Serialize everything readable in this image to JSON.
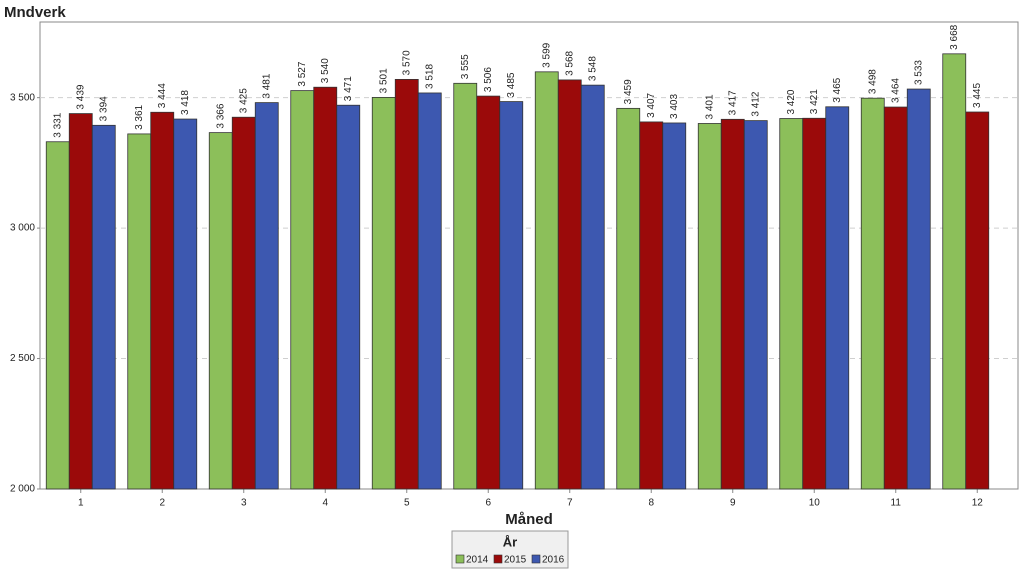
{
  "chart_data": {
    "type": "bar",
    "title": "Mndverk",
    "x_label": "Måned",
    "legend_title": "År",
    "legend_position": "bottom",
    "grid": true,
    "categories": [
      "1",
      "2",
      "3",
      "4",
      "5",
      "6",
      "7",
      "8",
      "9",
      "10",
      "11",
      "12"
    ],
    "series": [
      {
        "name": "2014",
        "color": "#8cbf5a",
        "values": [
          3331,
          3361,
          3366,
          3527,
          3501,
          3555,
          3599,
          3459,
          3401,
          3420,
          3498,
          3668
        ],
        "value_labels": [
          "3 331",
          "3 361",
          "3 366",
          "3 527",
          "3 501",
          "3 555",
          "3 599",
          "3 459",
          "3 401",
          "3 420",
          "3 498",
          "3 668"
        ]
      },
      {
        "name": "2015",
        "color": "#9b0a0a",
        "values": [
          3439,
          3444,
          3425,
          3540,
          3570,
          3506,
          3568,
          3407,
          3417,
          3421,
          3464,
          3445
        ],
        "value_labels": [
          "3 439",
          "3 444",
          "3 425",
          "3 540",
          "3 570",
          "3 506",
          "3 568",
          "3 407",
          "3 417",
          "3 421",
          "3 464",
          "3 445"
        ]
      },
      {
        "name": "2016",
        "color": "#3d58b0",
        "values": [
          3394,
          3418,
          3481,
          3471,
          3518,
          3485,
          3548,
          3403,
          3412,
          3465,
          3533,
          null
        ],
        "value_labels": [
          "3 394",
          "3 418",
          "3 481",
          "3 471",
          "3 518",
          "3 485",
          "3 548",
          "3 403",
          "3 412",
          "3 465",
          "3 533",
          null
        ]
      }
    ],
    "ylim": [
      2000,
      3790
    ],
    "yticks": [
      {
        "value": 2000,
        "label": "2 000"
      },
      {
        "value": 2500,
        "label": "2 500"
      },
      {
        "value": 3000,
        "label": "3 000"
      },
      {
        "value": 3500,
        "label": "3 500"
      }
    ]
  }
}
